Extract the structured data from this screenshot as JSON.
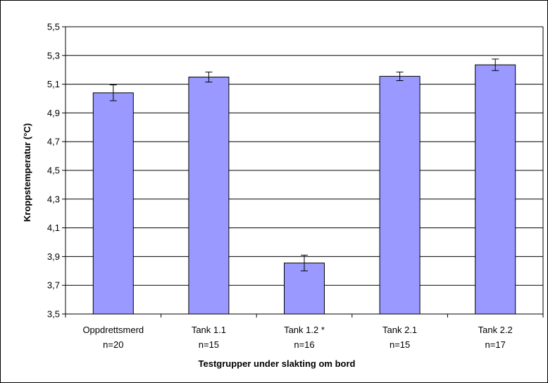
{
  "chart_data": {
    "type": "bar",
    "xlabel": "Testgrupper under slakting om bord",
    "ylabel": "Kroppstemperatur (°C)",
    "ylim": [
      3.5,
      5.5
    ],
    "yticks": [
      "3,5",
      "3,7",
      "3,9",
      "4,1",
      "4,3",
      "4,5",
      "4,7",
      "4,9",
      "5,1",
      "5,3",
      "5,5"
    ],
    "grid": true,
    "bar_color": "#9999ff",
    "categories": [
      {
        "name": "Oppdrettsmerd",
        "n": "n=20"
      },
      {
        "name": "Tank 1.1",
        "n": "n=15"
      },
      {
        "name": "Tank 1.2 *",
        "n": "n=16"
      },
      {
        "name": "Tank 2.1",
        "n": "n=15"
      },
      {
        "name": "Tank 2.2",
        "n": "n=17"
      }
    ],
    "values": [
      5.04,
      5.15,
      3.855,
      5.155,
      5.235
    ],
    "error": [
      0.055,
      0.035,
      0.055,
      0.03,
      0.04
    ]
  }
}
